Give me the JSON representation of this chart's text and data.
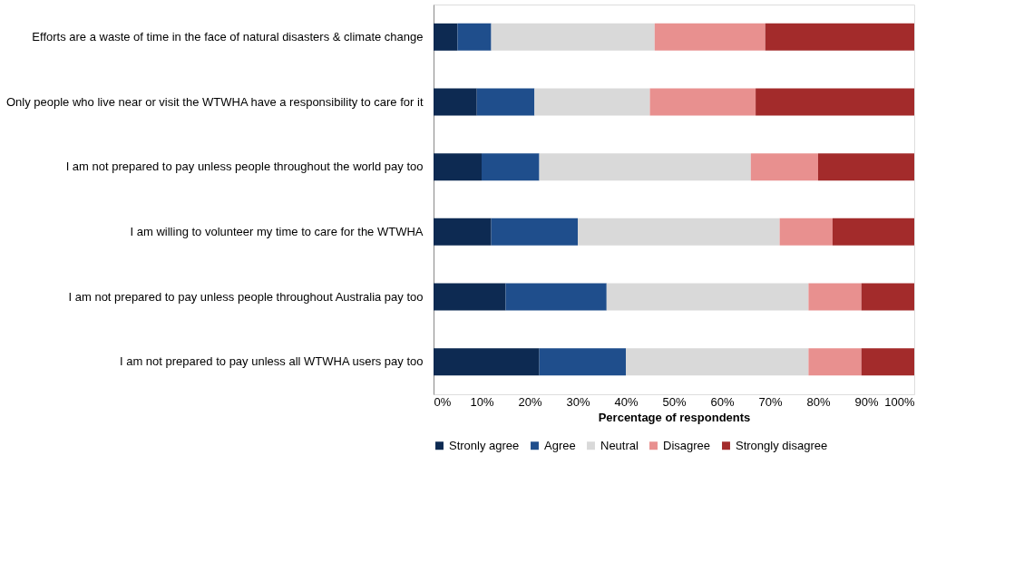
{
  "chart_data": {
    "type": "bar",
    "orientation": "horizontal",
    "stacked": true,
    "xlabel": "Percentage of respondents",
    "categories": [
      "Efforts are a waste of time in the face of natural disasters & climate change",
      "Only people who live near or visit the WTWHA have a responsibility to care for it",
      "I am not prepared to pay unless people throughout the world pay too",
      "I am willing to volunteer my time to care for the WTWHA",
      "I am not prepared to pay unless people throughout Australia pay too",
      "I am not prepared to pay unless all WTWHA users pay too"
    ],
    "series": [
      {
        "name": "Stronly agree",
        "color": "#0d2a52",
        "values": [
          5,
          9,
          10,
          12,
          15,
          22
        ]
      },
      {
        "name": "Agree",
        "color": "#1f4e8c",
        "values": [
          7,
          12,
          12,
          18,
          21,
          18
        ]
      },
      {
        "name": "Neutral",
        "color": "#d9d9d9",
        "values": [
          34,
          24,
          44,
          42,
          42,
          38
        ]
      },
      {
        "name": "Disagree",
        "color": "#e8908f",
        "values": [
          23,
          22,
          14,
          11,
          11,
          11
        ]
      },
      {
        "name": "Strongly disagree",
        "color": "#a32b2b",
        "values": [
          31,
          33,
          20,
          17,
          11,
          11
        ]
      }
    ],
    "xlim": [
      0,
      100
    ],
    "xticks": [
      {
        "value": 0,
        "label": "0%"
      },
      {
        "value": 10,
        "label": "10%"
      },
      {
        "value": 20,
        "label": "20%"
      },
      {
        "value": 30,
        "label": "30%"
      },
      {
        "value": 40,
        "label": "40%"
      },
      {
        "value": 50,
        "label": "50%"
      },
      {
        "value": 60,
        "label": "60%"
      },
      {
        "value": 70,
        "label": "70%"
      },
      {
        "value": 80,
        "label": "80%"
      },
      {
        "value": 90,
        "label": "90%"
      },
      {
        "value": 100,
        "label": "100%"
      }
    ],
    "grid": false,
    "legend": "bottom"
  }
}
